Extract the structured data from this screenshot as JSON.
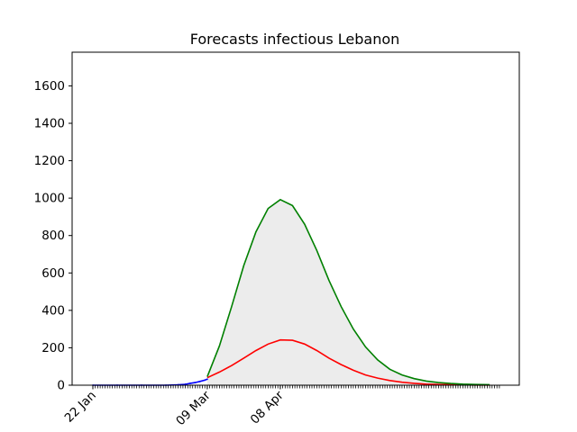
{
  "chart_data": {
    "type": "line",
    "title": "Forecasts infectious Lebanon",
    "xlabel": "",
    "ylabel": "",
    "x_tick_labels": [
      "22 Jan",
      "09 Mar",
      "08 Apr"
    ],
    "x_tick_days": [
      0,
      47,
      77
    ],
    "ylim": [
      0,
      1780
    ],
    "y_ticks": [
      0,
      200,
      400,
      600,
      800,
      1000,
      1200,
      1400,
      1600
    ],
    "grid": false,
    "series": [
      {
        "color": "#0000ff",
        "style": "observed",
        "x_days": [
          0,
          10,
          20,
          30,
          35,
          38,
          40,
          42,
          44,
          46,
          47
        ],
        "values": [
          0,
          0,
          0,
          0,
          2,
          5,
          10,
          14,
          20,
          27,
          32
        ]
      },
      {
        "color": "#ff0000",
        "style": "forecast-central",
        "x_days": [
          47,
          52,
          57,
          62,
          67,
          72,
          77,
          82,
          87,
          92,
          97,
          102,
          107,
          112,
          117,
          122,
          127,
          132,
          137,
          142,
          147,
          152,
          157,
          163
        ],
        "values": [
          40,
          70,
          105,
          145,
          185,
          220,
          242,
          240,
          220,
          185,
          145,
          110,
          80,
          55,
          38,
          25,
          16,
          10,
          6,
          4,
          3,
          2,
          1,
          1
        ]
      },
      {
        "color": "#008000",
        "style": "forecast-upper",
        "x_days": [
          47,
          52,
          57,
          62,
          67,
          72,
          77,
          82,
          87,
          92,
          97,
          102,
          107,
          112,
          117,
          122,
          127,
          132,
          137,
          142,
          147,
          152,
          157,
          163
        ],
        "values": [
          45,
          210,
          420,
          640,
          820,
          945,
          992,
          960,
          860,
          720,
          560,
          420,
          300,
          205,
          135,
          85,
          55,
          35,
          22,
          14,
          9,
          6,
          4,
          3
        ]
      }
    ],
    "band": {
      "color": "#ececec",
      "lower": "zero",
      "upper_series_index": 2
    }
  }
}
